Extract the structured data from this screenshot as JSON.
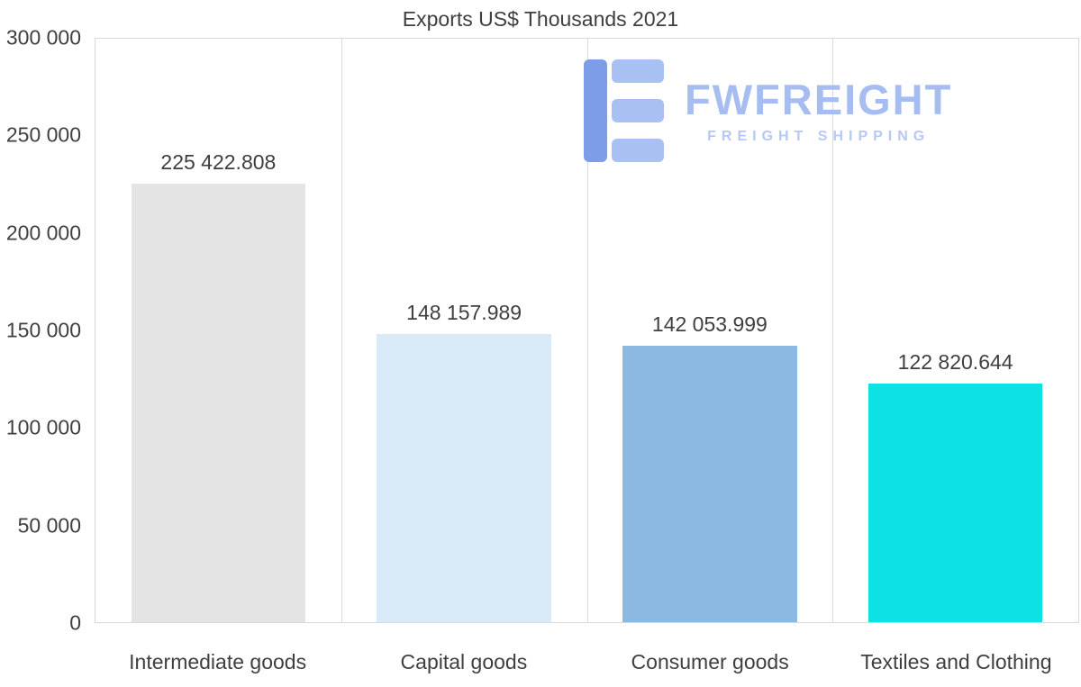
{
  "chart_data": {
    "type": "bar",
    "title": "Exports US$ Thousands 2021",
    "categories": [
      "Intermediate goods",
      "Capital goods",
      "Consumer goods",
      "Textiles and Clothing"
    ],
    "values": [
      225422.808,
      148157.989,
      142053.999,
      122820.644
    ],
    "value_labels": [
      "225 422.808",
      "148 157.989",
      "142 053.999",
      "122 820.644"
    ],
    "bar_colors": [
      "#e4e4e4",
      "#d8eaf8",
      "#8cb9e2",
      "#0de1e4"
    ],
    "xlabel": "",
    "ylabel": "",
    "ylim": [
      0,
      300000
    ],
    "ytick_labels": [
      "0",
      "50 000",
      "100 000",
      "150 000",
      "200 000",
      "250 000",
      "300 000"
    ],
    "grid": "vertical category separators and plot border, light gray",
    "legend": "none"
  },
  "watermark": {
    "brand": "FWFREIGHT",
    "tagline": "FREIGHT SHIPPING"
  }
}
